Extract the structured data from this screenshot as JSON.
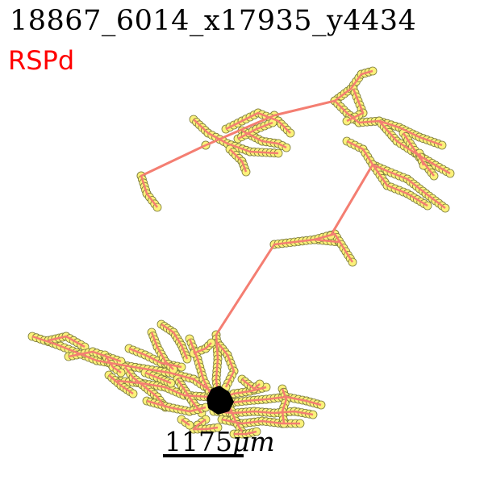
{
  "title": "18867_6014_x17935_y4434",
  "region_label": "RSPd",
  "scale_bar": {
    "value_text": "1175",
    "unit_text": "μm"
  },
  "colors": {
    "region_label": "#ff0000",
    "neurite_line": "#f47e72",
    "node_fill": "#fbf17a",
    "node_stroke": "#7a7a3a",
    "soma": "#000000"
  }
}
